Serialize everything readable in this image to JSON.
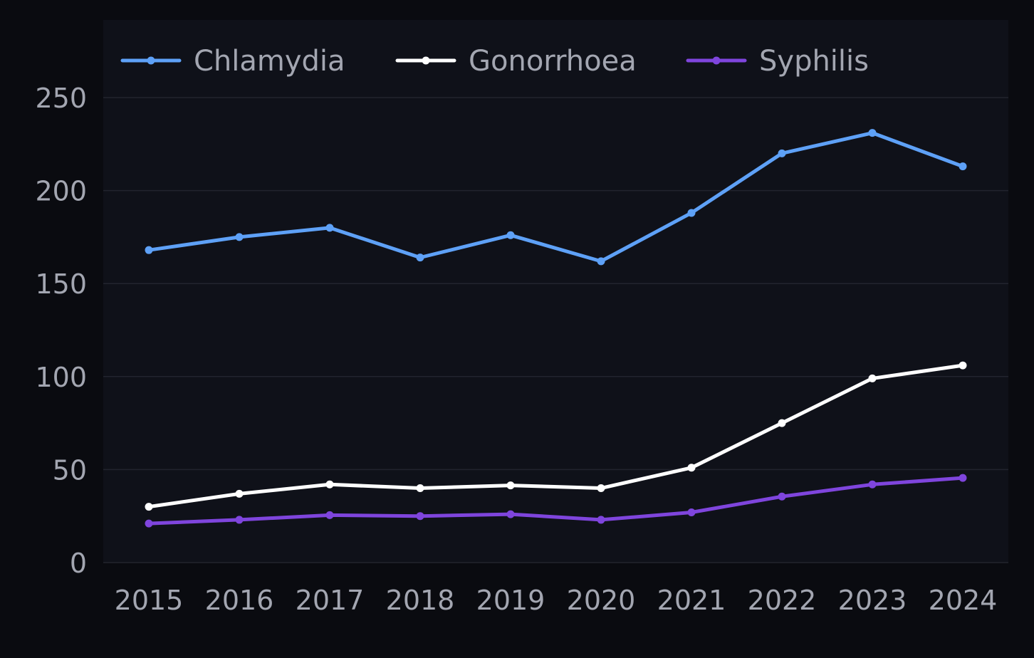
{
  "chart_data": {
    "type": "line",
    "title": "",
    "xlabel": "",
    "ylabel": "",
    "categories": [
      "2015",
      "2016",
      "2017",
      "2018",
      "2019",
      "2020",
      "2021",
      "2022",
      "2023",
      "2024"
    ],
    "ylim": [
      0,
      250
    ],
    "yticks": [
      0,
      50,
      100,
      150,
      200,
      250
    ],
    "grid": true,
    "legend_position": "top-left",
    "series": [
      {
        "name": "Chlamydia",
        "color": "#5ea1f7",
        "values": [
          168,
          175,
          180,
          164,
          176,
          162,
          188,
          220,
          231,
          213
        ]
      },
      {
        "name": "Gonorrhoea",
        "color": "#ffffff",
        "values": [
          30,
          37,
          42,
          40,
          41.5,
          40,
          51,
          75,
          99,
          106
        ]
      },
      {
        "name": "Syphilis",
        "color": "#7f45dd",
        "values": [
          21,
          23,
          25.5,
          25,
          26,
          23,
          27,
          35.5,
          42,
          45.5
        ]
      }
    ],
    "colors": {
      "background": "#0a0b10",
      "plot_background": "#0f1119",
      "grid": "#22242e",
      "text": "#a3a6b1"
    }
  }
}
